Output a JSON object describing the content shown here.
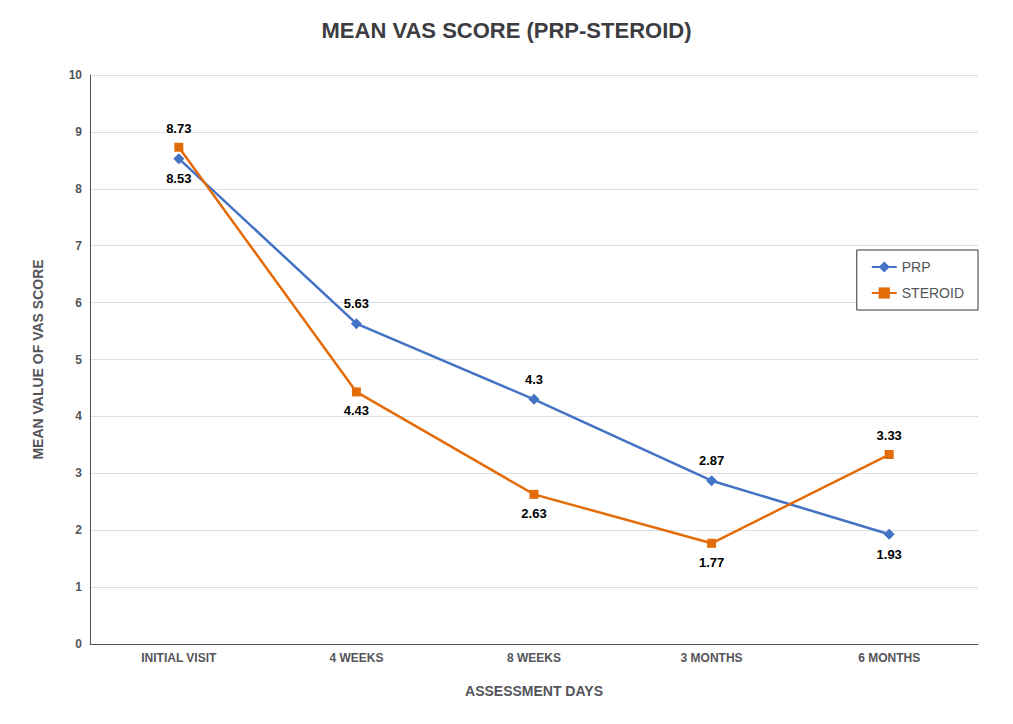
{
  "chart_data": {
    "type": "line",
    "title": "MEAN VAS SCORE (PRP-STEROID)",
    "xlabel": "ASSESSMENT DAYS",
    "ylabel": "MEAN VALUE OF VAS SCORE",
    "categories": [
      "INITIAL VISIT",
      "4 WEEKS",
      "8 WEEKS",
      "3 MONTHS",
      "6 MONTHS"
    ],
    "series": [
      {
        "name": "PRP",
        "color": "#4472C4",
        "marker": "diamond",
        "values": [
          8.53,
          5.63,
          4.3,
          2.87,
          1.93
        ]
      },
      {
        "name": "STEROID",
        "color": "#E36C09",
        "marker": "square",
        "values": [
          8.73,
          4.43,
          2.63,
          1.77,
          3.33
        ]
      }
    ],
    "ylim": [
      0,
      10
    ],
    "yticks": [
      0,
      1,
      2,
      3,
      4,
      5,
      6,
      7,
      8,
      9,
      10
    ],
    "grid": true,
    "legend": "right",
    "data_labels": true
  }
}
